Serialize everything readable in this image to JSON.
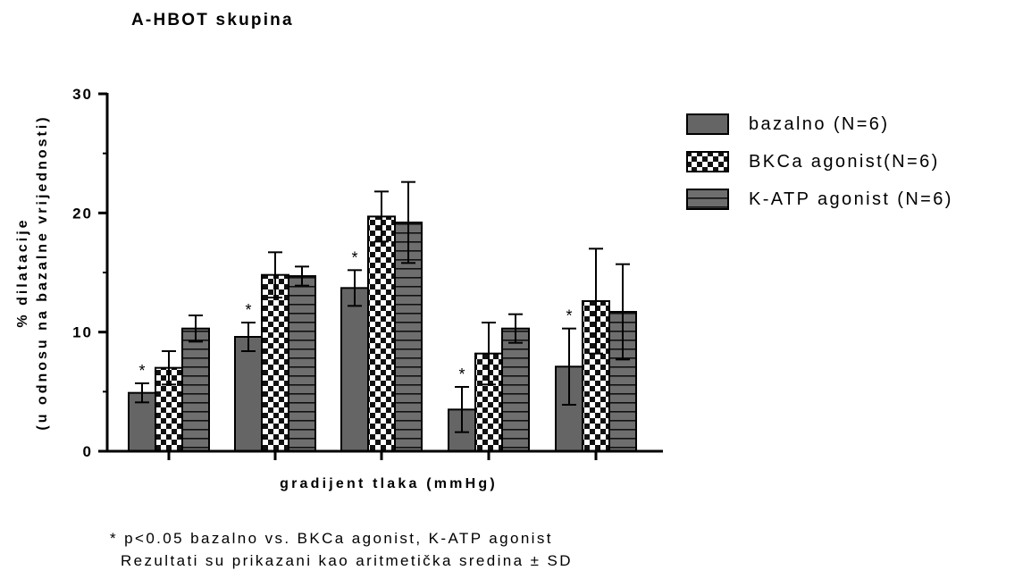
{
  "chart_data": {
    "type": "bar",
    "title": "A-HBOT skupina",
    "ylabel_line1": "% dilatacije",
    "ylabel_line2": "(u odnosu na bazalne vrijednosti)",
    "xlabel": "gradijent tlaka (mmHg)",
    "ylim": [
      0,
      30
    ],
    "yticks": [
      0,
      10,
      20,
      30
    ],
    "categories": [
      "",
      "",
      "",
      "",
      ""
    ],
    "series": [
      {
        "name": " bazalno (N=6)",
        "pattern": "solid",
        "values": [
          4.9,
          9.6,
          13.7,
          3.5,
          7.1
        ],
        "errors": [
          0.8,
          1.2,
          1.5,
          1.9,
          3.2
        ],
        "significant": [
          true,
          true,
          true,
          true,
          true
        ]
      },
      {
        "name": "BKCa agonist(N=6)",
        "pattern": "checker",
        "values": [
          7.0,
          14.8,
          19.7,
          8.2,
          12.6
        ],
        "errors": [
          1.4,
          1.9,
          2.1,
          2.6,
          4.4
        ],
        "significant": [
          false,
          false,
          false,
          false,
          false
        ]
      },
      {
        "name": "K-ATP agonist (N=6)",
        "pattern": "hstripes",
        "values": [
          10.3,
          14.7,
          19.2,
          10.3,
          11.7
        ],
        "errors": [
          1.1,
          0.8,
          3.4,
          1.2,
          4.0
        ],
        "significant": [
          false,
          false,
          false,
          false,
          false
        ]
      }
    ],
    "significance_marker": "*",
    "legend_position": "right",
    "grid": false
  },
  "footnote": {
    "line1": "* p<0.05 bazalno vs. BKCa agonist, K-ATP agonist",
    "line2": "Rezultati su prikazani kao aritmetička sredina ± SD"
  },
  "colors": {
    "bar_fill": "#656565",
    "axis": "#000000"
  }
}
